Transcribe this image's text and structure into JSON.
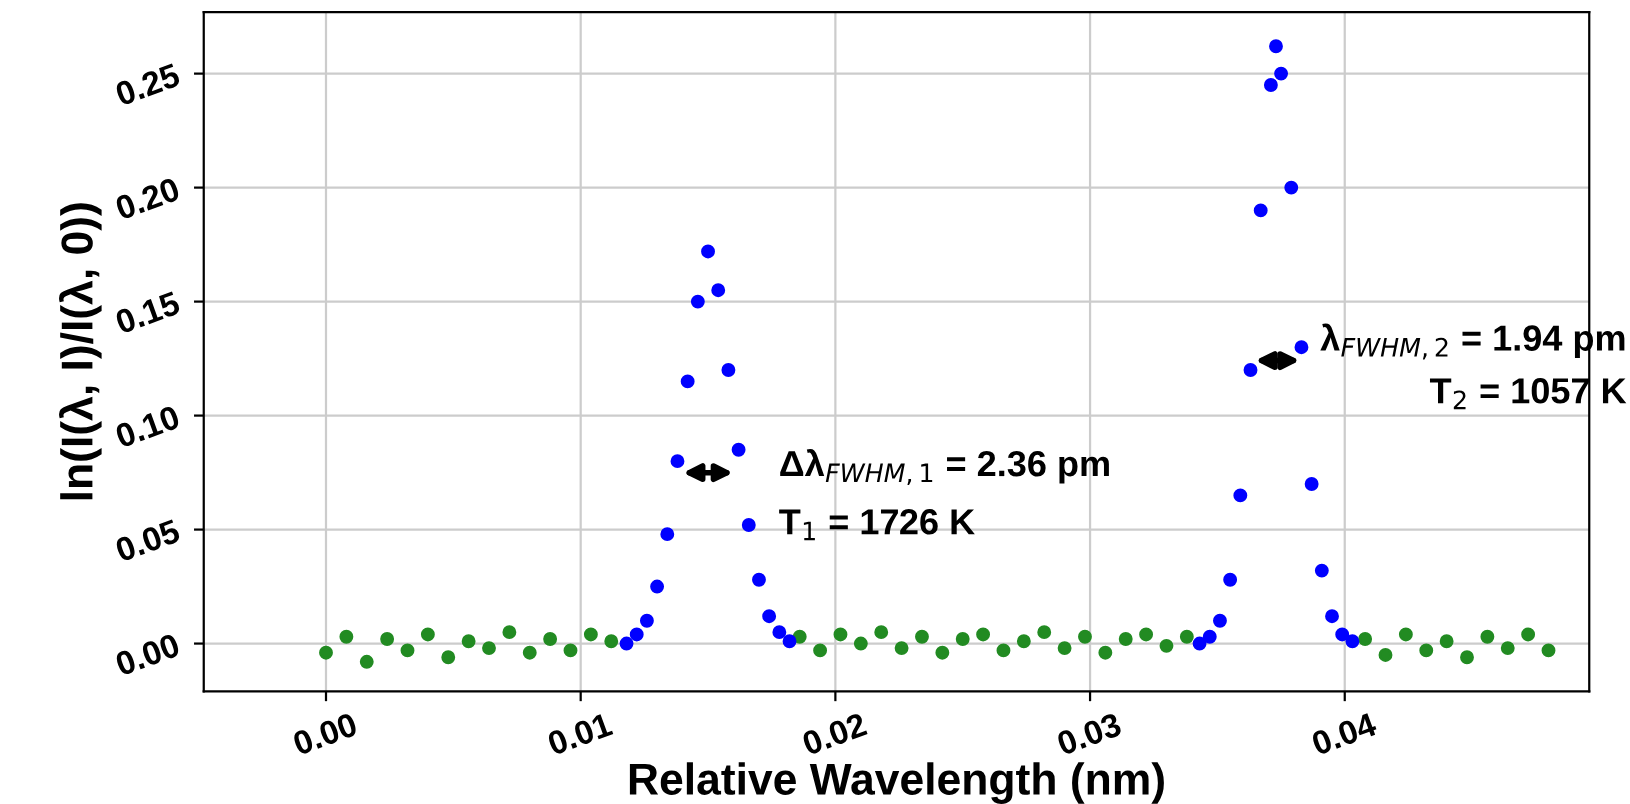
{
  "chart_data": {
    "type": "scatter",
    "xlabel": "Relative Wavelength (nm)",
    "ylabel": "ln(I(λ, I)/I(λ, 0))",
    "xlim": [
      -0.0048,
      0.0496
    ],
    "ylim": [
      -0.021,
      0.277
    ],
    "xticks": [
      {
        "value": 0,
        "label": "0.00"
      },
      0.01,
      0.02,
      0.03,
      0.04
    ],
    "yticks": [
      {
        "value": 0,
        "label": "0.00"
      },
      0.05,
      {
        "value": 0.1,
        "label": "0.10"
      },
      0.15,
      {
        "value": 0.2,
        "label": "0.20"
      },
      0.25
    ],
    "grid": true,
    "marker": "circle",
    "annotations": [
      "Δλ$_{FWHM,1}$ = 2.36 pm",
      "T$_{1}$ = 1726 K",
      "λ$_{FWHM,2}$ = 1.94 pm",
      "T$_{2}$ = 1057 K"
    ],
    "series": [
      {
        "color": "#228b22",
        "x": [
          0.0,
          0.0008,
          0.0016,
          0.0024,
          0.0032,
          0.004,
          0.0048,
          0.0056,
          0.0064,
          0.0072,
          0.008,
          0.0088,
          0.0096,
          0.0104,
          0.0112,
          0.0186,
          0.0194,
          0.0202,
          0.021,
          0.0218,
          0.0226,
          0.0234,
          0.0242,
          0.025,
          0.0258,
          0.0266,
          0.0274,
          0.0282,
          0.029,
          0.0298,
          0.0306,
          0.0314,
          0.0322,
          0.033,
          0.0338,
          0.0408,
          0.0416,
          0.0424,
          0.0432,
          0.044,
          0.0448,
          0.0456,
          0.0464,
          0.0472,
          0.048
        ],
        "values": [
          -0.004,
          0.003,
          -0.008,
          0.002,
          -0.003,
          0.004,
          -0.006,
          0.001,
          -0.002,
          0.005,
          -0.004,
          0.002,
          -0.003,
          0.004,
          0.001,
          0.003,
          -0.003,
          0.004,
          0.0,
          0.005,
          -0.002,
          0.003,
          -0.004,
          0.002,
          0.004,
          -0.003,
          0.001,
          0.005,
          -0.002,
          0.003,
          -0.004,
          0.002,
          0.004,
          -0.001,
          0.003,
          0.002,
          -0.005,
          0.004,
          -0.003,
          0.001,
          -0.006,
          0.003,
          -0.002,
          0.004,
          -0.003
        ]
      },
      {
        "color": "#0000ff",
        "x": [
          0.0118,
          0.0122,
          0.0126,
          0.013,
          0.0134,
          0.0138,
          0.0142,
          0.0146,
          0.015,
          0.0154,
          0.0158,
          0.0162,
          0.0166,
          0.017,
          0.0174,
          0.0178,
          0.0182,
          0.0343,
          0.0347,
          0.0351,
          0.0355,
          0.0359,
          0.0363,
          0.0367,
          0.0371,
          0.0373,
          0.0375,
          0.0379,
          0.0383,
          0.0387,
          0.0391,
          0.0395,
          0.0399,
          0.0403
        ],
        "values": [
          0.0,
          0.004,
          0.01,
          0.025,
          0.048,
          0.08,
          0.115,
          0.15,
          0.172,
          0.155,
          0.12,
          0.085,
          0.052,
          0.028,
          0.012,
          0.005,
          0.001,
          0.0,
          0.003,
          0.01,
          0.028,
          0.065,
          0.12,
          0.19,
          0.245,
          0.262,
          0.25,
          0.2,
          0.13,
          0.07,
          0.032,
          0.012,
          0.004,
          0.001
        ]
      }
    ]
  }
}
